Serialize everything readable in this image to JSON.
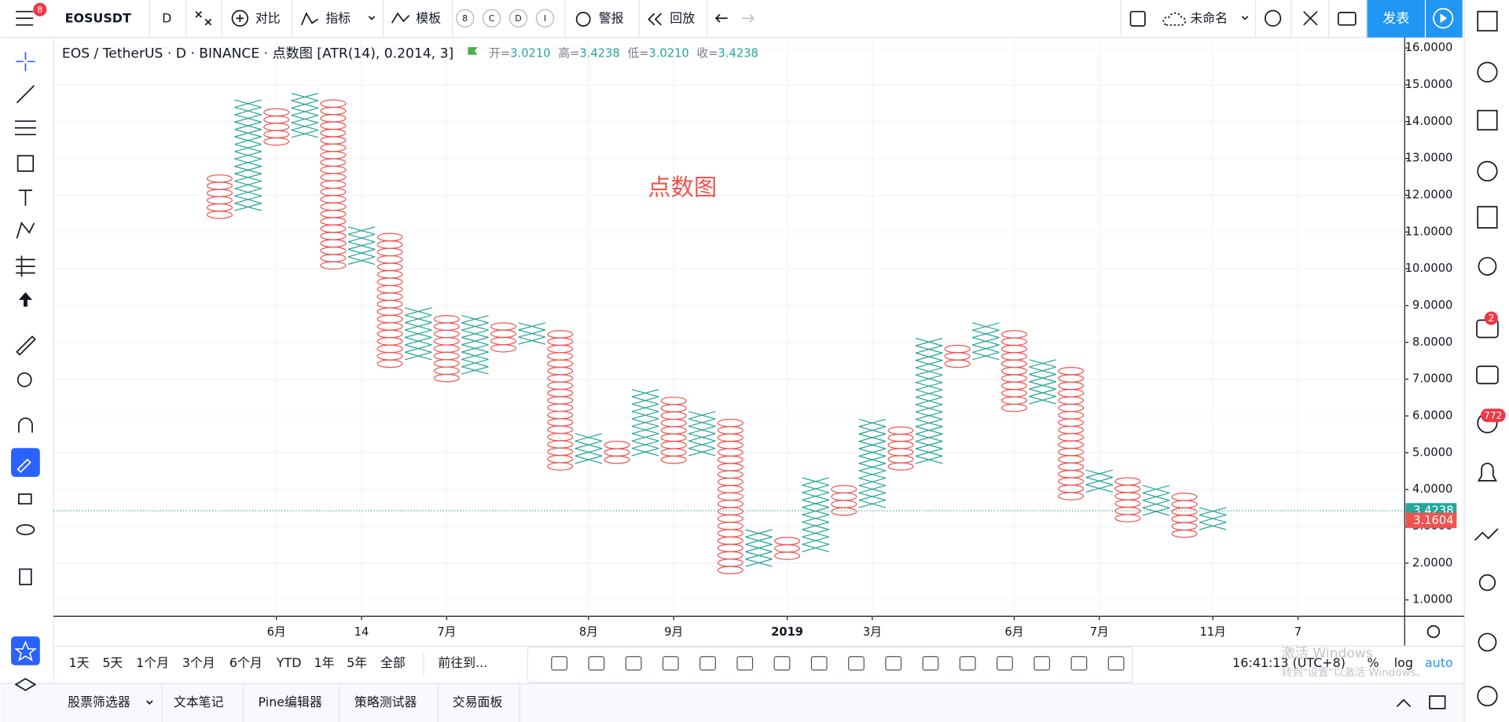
{
  "toolbar": {
    "menu_badge": "8",
    "symbol": "EOSUSDT",
    "interval": "D",
    "compare": "对比",
    "indicators": "指标",
    "templates": "模板",
    "badges": [
      "8",
      "C",
      "D",
      "I"
    ],
    "alert": "警报",
    "replay": "回放",
    "layout_name": "未命名",
    "publish": "发表"
  },
  "legend": {
    "symbol_info": "EOS / TetherUS · D · BINANCE · 点数图 [ATR(14), 0.2014, 3]",
    "ohlc": [
      {
        "label": "开=",
        "value": "3.0210"
      },
      {
        "label": "高=",
        "value": "3.4238"
      },
      {
        "label": "低=",
        "value": "3.0210"
      },
      {
        "label": "收=",
        "value": "3.4238"
      }
    ]
  },
  "chart_data": {
    "type": "pointfigure",
    "annotation": "点数图",
    "box_size": 0.2014,
    "columns": {
      "types": [
        "O",
        "X",
        "O",
        "X",
        "O",
        "X",
        "O",
        "X",
        "O",
        "X",
        "O",
        "X",
        "O",
        "X",
        "O",
        "X",
        "O",
        "X",
        "O",
        "X",
        "O",
        "X",
        "O",
        "X",
        "O",
        "X",
        "O",
        "X",
        "O",
        "X",
        "O",
        "X",
        "O",
        "X",
        "O",
        "X"
      ],
      "highs": [
        12.55,
        14.59,
        14.35,
        14.77,
        14.59,
        11.14,
        10.96,
        8.94,
        8.73,
        8.73,
        8.53,
        8.53,
        8.32,
        5.52,
        5.31,
        6.72,
        6.51,
        6.12,
        5.91,
        2.91,
        2.7,
        4.32,
        4.11,
        5.91,
        5.7,
        8.11,
        7.92,
        8.53,
        8.32,
        7.53,
        7.32,
        4.53,
        4.32,
        4.11,
        3.9,
        3.51
      ],
      "lows": [
        11.37,
        11.58,
        13.36,
        13.57,
        9.99,
        10.12,
        7.32,
        7.53,
        6.93,
        7.14,
        7.74,
        7.95,
        4.53,
        4.71,
        4.71,
        4.92,
        4.71,
        4.92,
        1.71,
        1.91,
        2.1,
        2.31,
        3.3,
        3.51,
        4.53,
        4.71,
        7.32,
        7.53,
        6.12,
        6.33,
        3.72,
        3.93,
        3.12,
        3.3,
        2.7,
        2.91
      ]
    },
    "x_color": "#26a69a",
    "o_color": "#ef5350",
    "xlim": [
      -5.86,
      41.76
    ],
    "xticks": [
      {
        "value": 2,
        "label": "6月"
      },
      {
        "value": 5,
        "label": "14"
      },
      {
        "value": 8,
        "label": "7月"
      },
      {
        "value": 13,
        "label": "8月"
      },
      {
        "value": 16,
        "label": "9月"
      },
      {
        "value": 20,
        "label": "2019"
      },
      {
        "value": 23,
        "label": "3月"
      },
      {
        "value": 28,
        "label": "6月"
      },
      {
        "value": 31,
        "label": "7月"
      },
      {
        "value": 35,
        "label": "11月"
      },
      {
        "value": 38,
        "label": "7"
      }
    ],
    "ylim": [
      0.556,
      16.26
    ],
    "yticks": [
      {
        "value": 1,
        "label": "1.0000"
      },
      {
        "value": 2,
        "label": "2.0000"
      },
      {
        "value": 3,
        "label": "3.0000"
      },
      {
        "value": 4,
        "label": "4.0000"
      },
      {
        "value": 5,
        "label": "5.0000"
      },
      {
        "value": 6,
        "label": "6.0000"
      },
      {
        "value": 7,
        "label": "7.0000"
      },
      {
        "value": 8,
        "label": "8.0000"
      },
      {
        "value": 9,
        "label": "9.0000"
      },
      {
        "value": 10,
        "label": "10.0000"
      },
      {
        "value": 11,
        "label": "11.0000"
      },
      {
        "value": 12,
        "label": "12.0000"
      },
      {
        "value": 13,
        "label": "13.0000"
      },
      {
        "value": 14,
        "label": "14.0000"
      },
      {
        "value": 15,
        "label": "15.0000"
      },
      {
        "value": 16,
        "label": "16.0000"
      }
    ],
    "price_labels": [
      {
        "value": 3.4238,
        "label": "3.4238",
        "color": "#26a69a"
      },
      {
        "value": 3.1604,
        "label": "3.1604",
        "color": "#ef5350"
      }
    ],
    "grid": true
  },
  "bottom_bar": {
    "ranges": [
      "1天",
      "5天",
      "1个月",
      "3个月",
      "6个月",
      "YTD",
      "1年",
      "5年",
      "全部"
    ],
    "goto": "前往到...",
    "clock": "16:41:13 (UTC+8)",
    "percent": "%",
    "log": "log",
    "auto": "auto"
  },
  "tabs": [
    "股票筛选器",
    "文本笔记",
    "Pine编辑器",
    "策略测试器",
    "交易面板"
  ],
  "side_badges": [
    "2",
    "772"
  ],
  "watermark": [
    "激活 Windows",
    "转到\"设置\"以激活 Windows。"
  ]
}
